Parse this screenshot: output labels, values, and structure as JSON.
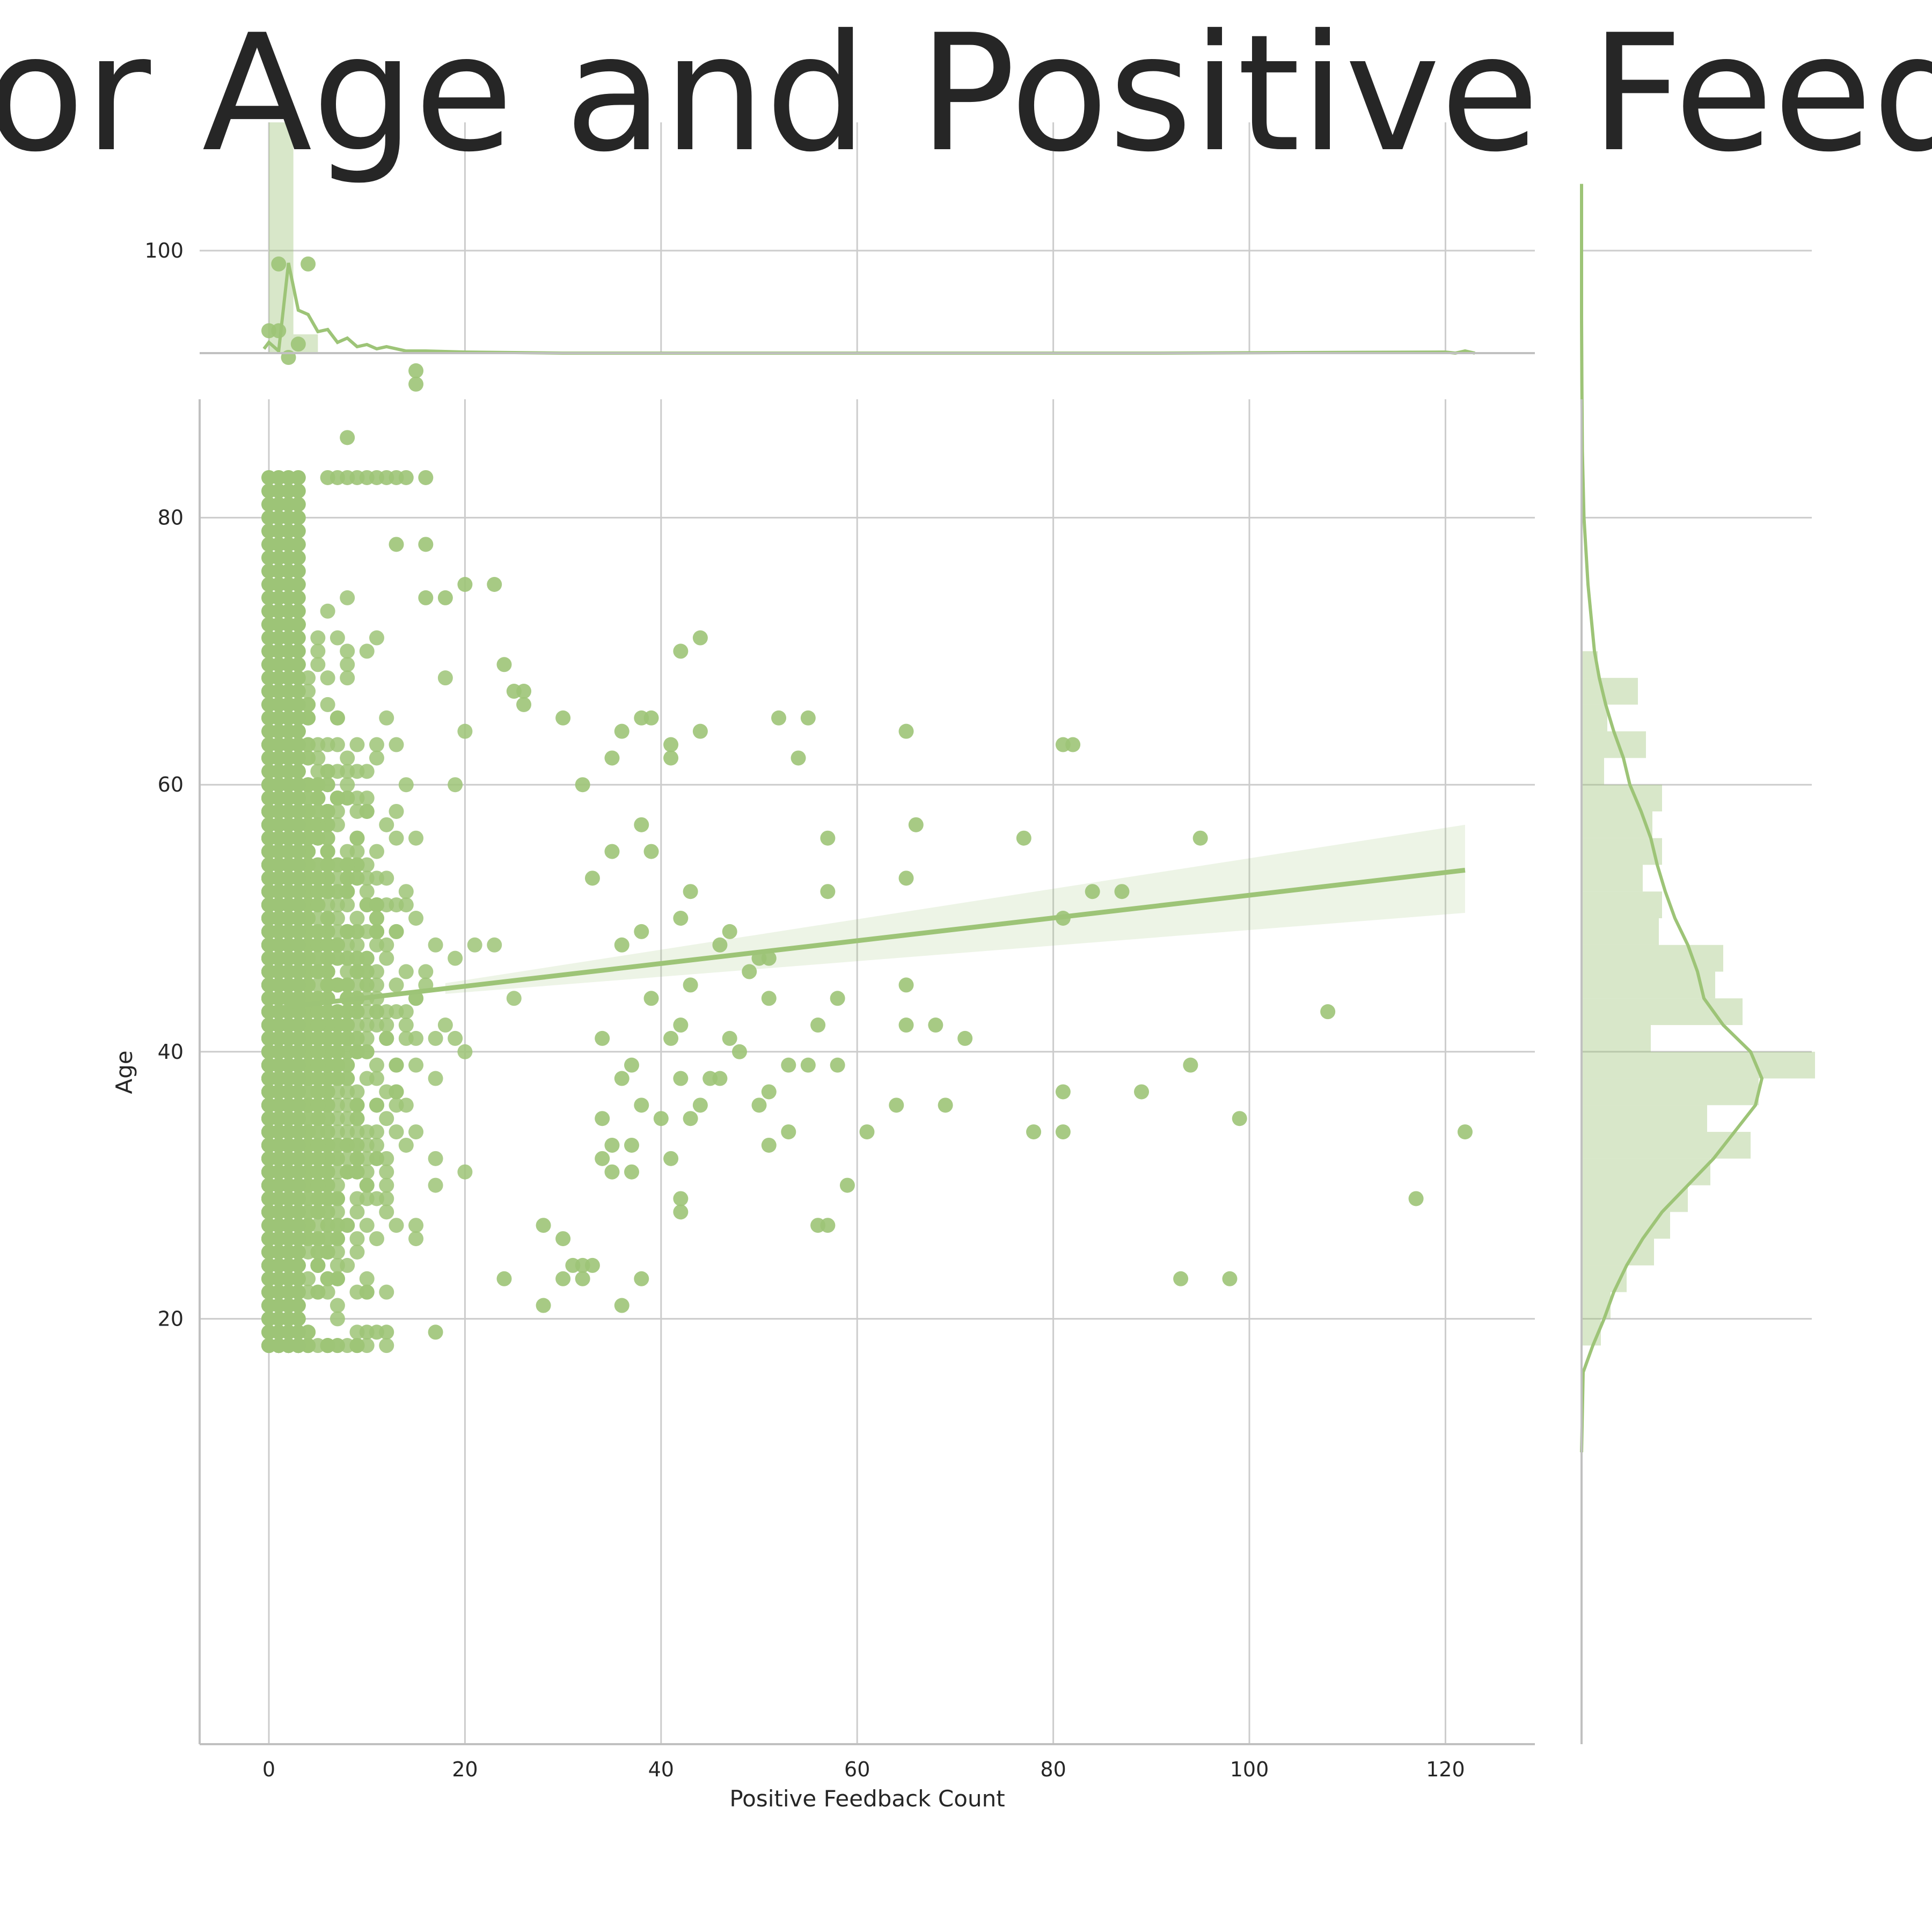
{
  "chart_data": {
    "type": "scatter",
    "title": "Plot for Age and Positive Feedback",
    "xlabel": "Positive Feedback Count",
    "ylabel": "Age",
    "xlim": [
      -7,
      129
    ],
    "ylim": [
      8,
      109
    ],
    "x_ticks": [
      0,
      20,
      40,
      60,
      80,
      100,
      120
    ],
    "y_ticks": [
      20,
      40,
      60,
      80,
      100
    ],
    "grid": true,
    "color": "#9dc477",
    "regression": {
      "x_start": 0,
      "x_end": 122,
      "y_start": 43.2,
      "y_end": 53.6,
      "ci_at_end": [
        50.4,
        57.0
      ]
    },
    "outlier_points": [
      [
        1,
        99
      ],
      [
        4,
        99
      ],
      [
        0,
        94
      ],
      [
        1,
        94
      ],
      [
        3,
        93
      ],
      [
        2,
        92
      ],
      [
        15,
        91
      ],
      [
        15,
        90
      ],
      [
        8,
        86
      ],
      [
        16,
        83
      ],
      [
        14,
        83
      ],
      [
        13,
        83
      ],
      [
        12,
        83
      ],
      [
        11,
        83
      ],
      [
        10,
        83
      ],
      [
        9,
        83
      ],
      [
        8,
        83
      ],
      [
        7,
        83
      ],
      [
        6,
        83
      ],
      [
        13,
        78
      ],
      [
        16,
        78
      ],
      [
        20,
        75
      ],
      [
        23,
        75
      ],
      [
        18,
        74
      ],
      [
        16,
        74
      ],
      [
        44,
        71
      ],
      [
        42,
        70
      ],
      [
        24,
        69
      ],
      [
        26,
        67
      ],
      [
        25,
        67
      ],
      [
        26,
        66
      ],
      [
        30,
        65
      ],
      [
        38,
        65
      ],
      [
        39,
        65
      ],
      [
        52,
        65
      ],
      [
        55,
        65
      ],
      [
        44,
        64
      ],
      [
        36,
        64
      ],
      [
        65,
        64
      ],
      [
        41,
        63
      ],
      [
        81,
        63
      ],
      [
        82,
        63
      ],
      [
        54,
        62
      ],
      [
        41,
        62
      ],
      [
        35,
        62
      ],
      [
        32,
        60
      ],
      [
        66,
        57
      ],
      [
        38,
        57
      ],
      [
        57,
        56
      ],
      [
        77,
        56
      ],
      [
        95,
        56
      ],
      [
        35,
        55
      ],
      [
        39,
        55
      ],
      [
        65,
        53
      ],
      [
        33,
        53
      ],
      [
        43,
        52
      ],
      [
        57,
        52
      ],
      [
        84,
        52
      ],
      [
        87,
        52
      ],
      [
        42,
        50
      ],
      [
        81,
        50
      ],
      [
        47,
        49
      ],
      [
        38,
        49
      ],
      [
        36,
        48
      ],
      [
        46,
        48
      ],
      [
        50,
        47
      ],
      [
        51,
        47
      ],
      [
        49,
        46
      ],
      [
        43,
        45
      ],
      [
        65,
        45
      ],
      [
        39,
        44
      ],
      [
        58,
        44
      ],
      [
        51,
        44
      ],
      [
        108,
        43
      ],
      [
        68,
        42
      ],
      [
        65,
        42
      ],
      [
        42,
        42
      ],
      [
        56,
        42
      ],
      [
        71,
        41
      ],
      [
        47,
        41
      ],
      [
        34,
        41
      ],
      [
        41,
        41
      ],
      [
        48,
        40
      ],
      [
        53,
        39
      ],
      [
        55,
        39
      ],
      [
        58,
        39
      ],
      [
        94,
        39
      ],
      [
        37,
        39
      ],
      [
        36,
        38
      ],
      [
        42,
        38
      ],
      [
        45,
        38
      ],
      [
        46,
        38
      ],
      [
        81,
        37
      ],
      [
        89,
        37
      ],
      [
        51,
        37
      ],
      [
        44,
        36
      ],
      [
        38,
        36
      ],
      [
        50,
        36
      ],
      [
        64,
        36
      ],
      [
        69,
        36
      ],
      [
        99,
        35
      ],
      [
        43,
        35
      ],
      [
        40,
        35
      ],
      [
        34,
        35
      ],
      [
        53,
        34
      ],
      [
        61,
        34
      ],
      [
        78,
        34
      ],
      [
        81,
        34
      ],
      [
        122,
        34
      ],
      [
        35,
        33
      ],
      [
        37,
        33
      ],
      [
        51,
        33
      ],
      [
        34,
        32
      ],
      [
        41,
        32
      ],
      [
        35,
        31
      ],
      [
        37,
        31
      ],
      [
        59,
        30
      ],
      [
        117,
        29
      ],
      [
        42,
        29
      ],
      [
        42,
        28
      ],
      [
        56,
        27
      ],
      [
        57,
        27
      ],
      [
        28,
        27
      ],
      [
        30,
        26
      ],
      [
        32,
        24
      ],
      [
        31,
        24
      ],
      [
        33,
        24
      ],
      [
        38,
        23
      ],
      [
        93,
        23
      ],
      [
        98,
        23
      ],
      [
        24,
        23
      ],
      [
        30,
        23
      ],
      [
        32,
        23
      ],
      [
        36,
        21
      ],
      [
        28,
        21
      ],
      [
        17,
        19
      ],
      [
        10,
        19
      ],
      [
        11,
        19
      ],
      [
        12,
        19
      ]
    ],
    "dense_core": {
      "x_range": [
        0,
        30
      ],
      "y_range": [
        18,
        75
      ],
      "count": 2600,
      "center_age": 42,
      "age_spread": 11
    },
    "top_marginal": {
      "type": "kde_hist",
      "hist_x": [
        0,
        2.5
      ],
      "kde": [
        [
          -0.5,
          0.02
        ],
        [
          0,
          0.05
        ],
        [
          1,
          0.01
        ],
        [
          2,
          0.42
        ],
        [
          3,
          0.2
        ],
        [
          4,
          0.18
        ],
        [
          5,
          0.1
        ],
        [
          6,
          0.11
        ],
        [
          7,
          0.05
        ],
        [
          8,
          0.07
        ],
        [
          9,
          0.03
        ],
        [
          10,
          0.04
        ],
        [
          11,
          0.02
        ],
        [
          12,
          0.03
        ],
        [
          14,
          0.01
        ],
        [
          16,
          0.01
        ],
        [
          20,
          0.005
        ],
        [
          30,
          0.0
        ],
        [
          60,
          0.0
        ],
        [
          90,
          0.0
        ],
        [
          120,
          0.005
        ],
        [
          121,
          0.0
        ],
        [
          122,
          0.01
        ],
        [
          123,
          0.0
        ]
      ]
    },
    "right_marginal": {
      "type": "kde_hist",
      "hist_bins": [
        [
          18,
          20,
          0.12
        ],
        [
          20,
          22,
          0.18
        ],
        [
          22,
          24,
          0.28
        ],
        [
          24,
          26,
          0.45
        ],
        [
          26,
          28,
          0.55
        ],
        [
          28,
          30,
          0.66
        ],
        [
          30,
          32,
          0.8
        ],
        [
          32,
          34,
          1.05
        ],
        [
          34,
          36,
          0.78
        ],
        [
          36,
          38,
          1.1
        ],
        [
          38,
          40,
          1.45
        ],
        [
          40,
          42,
          0.43
        ],
        [
          42,
          44,
          1.0
        ],
        [
          44,
          46,
          0.83
        ],
        [
          46,
          48,
          0.88
        ],
        [
          48,
          50,
          0.48
        ],
        [
          50,
          52,
          0.5
        ],
        [
          52,
          54,
          0.38
        ],
        [
          54,
          56,
          0.5
        ],
        [
          56,
          58,
          0.44
        ],
        [
          58,
          60,
          0.5
        ],
        [
          60,
          62,
          0.14
        ],
        [
          62,
          64,
          0.4
        ],
        [
          64,
          66,
          0.16
        ],
        [
          66,
          68,
          0.35
        ],
        [
          68,
          70,
          0.1
        ]
      ],
      "kde": [
        [
          10,
          0.0
        ],
        [
          16,
          0.01
        ],
        [
          18,
          0.07
        ],
        [
          20,
          0.14
        ],
        [
          22,
          0.2
        ],
        [
          24,
          0.28
        ],
        [
          26,
          0.38
        ],
        [
          28,
          0.5
        ],
        [
          30,
          0.66
        ],
        [
          32,
          0.82
        ],
        [
          34,
          0.95
        ],
        [
          36,
          1.08
        ],
        [
          38,
          1.12
        ],
        [
          40,
          1.05
        ],
        [
          42,
          0.88
        ],
        [
          44,
          0.76
        ],
        [
          46,
          0.72
        ],
        [
          48,
          0.66
        ],
        [
          50,
          0.58
        ],
        [
          52,
          0.52
        ],
        [
          54,
          0.47
        ],
        [
          56,
          0.43
        ],
        [
          58,
          0.37
        ],
        [
          60,
          0.3
        ],
        [
          62,
          0.26
        ],
        [
          64,
          0.2
        ],
        [
          66,
          0.15
        ],
        [
          68,
          0.11
        ],
        [
          70,
          0.08
        ],
        [
          75,
          0.04
        ],
        [
          80,
          0.015
        ],
        [
          85,
          0.005
        ],
        [
          90,
          0.002
        ],
        [
          95,
          0.0
        ],
        [
          105,
          0.0
        ]
      ]
    }
  }
}
